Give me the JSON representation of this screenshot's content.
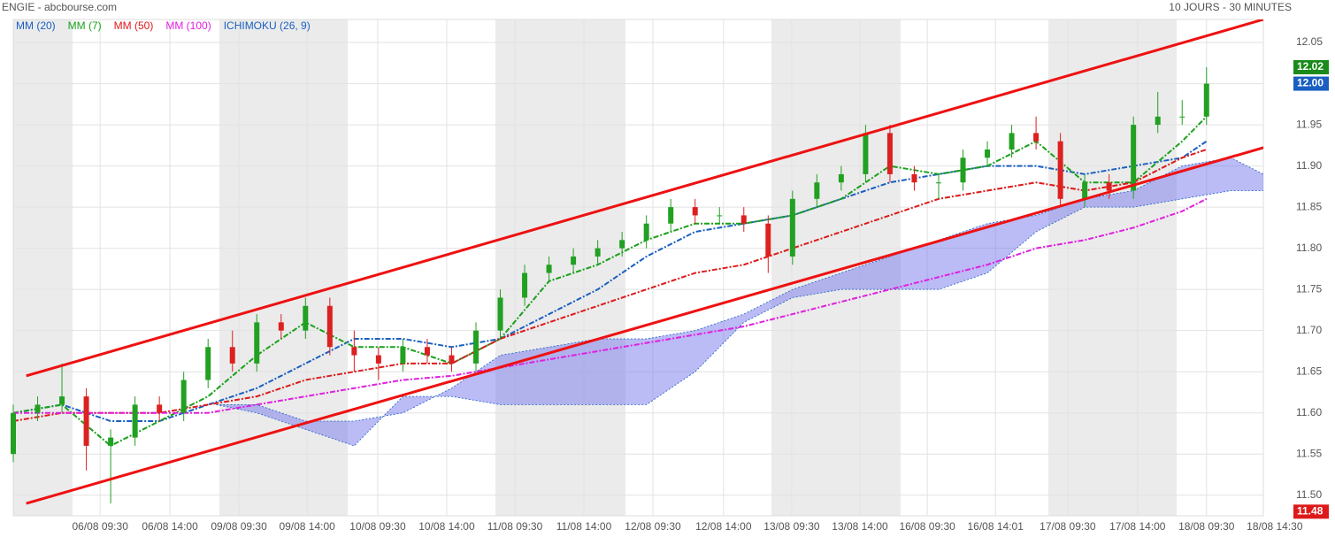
{
  "chart_data": {
    "type": "candlestick",
    "title": "ENGIE - abcbourse.com",
    "subtitle": "10 JOURS - 30 MINUTES",
    "xlim": [
      0,
      154
    ],
    "ylim": [
      11.475,
      12.078
    ],
    "yticks": [
      {
        "value": 11.5,
        "label": "11.50"
      },
      11.55,
      {
        "value": 11.6,
        "label": "11.60"
      },
      11.65,
      {
        "value": 11.7,
        "label": "11.70"
      },
      11.75,
      {
        "value": 11.8,
        "label": "11.80"
      },
      11.85,
      {
        "value": 11.9,
        "label": "11.90"
      },
      11.95,
      {
        "value": 12.0,
        "label": "12.00"
      },
      12.05
    ],
    "xticks": [
      {
        "value": 10.7,
        "label": "06/08 09:30"
      },
      {
        "value": 19.3,
        "label": "06/08 14:00"
      },
      {
        "value": 27.8,
        "label": "09/08 09:30"
      },
      {
        "value": 36.2,
        "label": "09/08 14:00"
      },
      {
        "value": 44.9,
        "label": "10/08 09:30"
      },
      {
        "value": 53.4,
        "label": "10/08 14:00"
      },
      {
        "value": 61.8,
        "label": "11/08 09:30"
      },
      {
        "value": 70.3,
        "label": "11/08 14:00"
      },
      {
        "value": 78.8,
        "label": "12/08 09:30"
      },
      {
        "value": 87.5,
        "label": "12/08 14:00"
      },
      {
        "value": 95.9,
        "label": "13/08 09:30"
      },
      {
        "value": 104.3,
        "label": "13/08 14:00"
      },
      {
        "value": 112.6,
        "label": "16/08 09:30"
      },
      {
        "value": 121,
        "label": "16/08 14:01"
      },
      {
        "value": 129.9,
        "label": "17/08 09:30"
      },
      {
        "value": 138.5,
        "label": "17/08 14:00"
      },
      {
        "value": 147,
        "label": "18/08 09:30"
      },
      {
        "value": 155.4,
        "label": "18/08 14:30"
      }
    ],
    "grid": true,
    "up_color": "#22a022",
    "down_color": "#dd2020",
    "candles": {
      "x": [
        0,
        3,
        6,
        9,
        12,
        15,
        18,
        21,
        24,
        27,
        30,
        33,
        36,
        39,
        42,
        45,
        48,
        51,
        54,
        57,
        60,
        63,
        66,
        69,
        72,
        75,
        78,
        81,
        84,
        87,
        90,
        93,
        96,
        99,
        102,
        105,
        108,
        111,
        114,
        117,
        120,
        123,
        126,
        129,
        132,
        135,
        138,
        141,
        144,
        147
      ],
      "open": [
        11.55,
        11.6,
        11.61,
        11.62,
        11.56,
        11.57,
        11.61,
        11.6,
        11.64,
        11.68,
        11.66,
        11.71,
        11.7,
        11.73,
        11.68,
        11.67,
        11.66,
        11.68,
        11.67,
        11.66,
        11.7,
        11.74,
        11.77,
        11.78,
        11.79,
        11.8,
        11.81,
        11.83,
        11.85,
        11.84,
        11.84,
        11.83,
        11.79,
        11.86,
        11.88,
        11.89,
        11.94,
        11.89,
        11.88,
        11.88,
        11.91,
        11.92,
        11.94,
        11.93,
        11.86,
        11.88,
        11.87,
        11.95,
        11.96,
        11.96
      ],
      "high": [
        11.61,
        11.62,
        11.66,
        11.63,
        11.58,
        11.62,
        11.62,
        11.65,
        11.69,
        11.7,
        11.72,
        11.72,
        11.74,
        11.74,
        11.7,
        11.68,
        11.69,
        11.69,
        11.68,
        11.71,
        11.75,
        11.78,
        11.79,
        11.8,
        11.81,
        11.82,
        11.84,
        11.86,
        11.86,
        11.85,
        11.85,
        11.84,
        11.87,
        11.89,
        11.9,
        11.95,
        11.95,
        11.9,
        11.89,
        11.92,
        11.93,
        11.95,
        11.96,
        11.94,
        11.89,
        11.89,
        11.96,
        11.99,
        11.98,
        12.02
      ],
      "low": [
        11.54,
        11.59,
        11.6,
        11.53,
        11.49,
        11.56,
        11.59,
        11.59,
        11.63,
        11.65,
        11.65,
        11.69,
        11.69,
        11.67,
        11.65,
        11.64,
        11.65,
        11.66,
        11.65,
        11.65,
        11.69,
        11.73,
        11.76,
        11.77,
        11.78,
        11.79,
        11.8,
        11.82,
        11.83,
        11.83,
        11.82,
        11.77,
        11.78,
        11.85,
        11.87,
        11.88,
        11.88,
        11.87,
        11.86,
        11.87,
        11.9,
        11.91,
        11.92,
        11.85,
        11.85,
        11.86,
        11.86,
        11.94,
        11.95,
        11.95
      ],
      "close": [
        11.6,
        11.61,
        11.62,
        11.56,
        11.57,
        11.61,
        11.6,
        11.64,
        11.68,
        11.66,
        11.71,
        11.7,
        11.73,
        11.68,
        11.67,
        11.66,
        11.68,
        11.67,
        11.66,
        11.7,
        11.74,
        11.77,
        11.78,
        11.79,
        11.8,
        11.81,
        11.83,
        11.85,
        11.84,
        11.84,
        11.83,
        11.79,
        11.86,
        11.88,
        11.89,
        11.94,
        11.89,
        11.88,
        11.88,
        11.91,
        11.92,
        11.94,
        11.93,
        11.86,
        11.88,
        11.87,
        11.95,
        11.96,
        11.96,
        12.0
      ]
    },
    "line_x": [
      0,
      6,
      12,
      18,
      24,
      30,
      36,
      42,
      48,
      54,
      60,
      66,
      72,
      78,
      84,
      90,
      96,
      102,
      108,
      114,
      120,
      126,
      132,
      138,
      144,
      147
    ],
    "series": [
      {
        "name": "MM (20)",
        "color": "#1a5fc0",
        "values": [
          11.6,
          11.61,
          11.59,
          11.59,
          11.61,
          11.63,
          11.66,
          11.69,
          11.69,
          11.68,
          11.69,
          11.72,
          11.75,
          11.79,
          11.82,
          11.83,
          11.84,
          11.86,
          11.88,
          11.89,
          11.9,
          11.9,
          11.89,
          11.9,
          11.91,
          11.93
        ]
      },
      {
        "name": "MM (7)",
        "color": "#1aa01a",
        "values": [
          11.6,
          11.61,
          11.56,
          11.59,
          11.62,
          11.67,
          11.71,
          11.68,
          11.68,
          11.66,
          11.69,
          11.76,
          11.78,
          11.81,
          11.83,
          11.83,
          11.84,
          11.86,
          11.9,
          11.89,
          11.9,
          11.93,
          11.88,
          11.88,
          11.93,
          11.96
        ]
      },
      {
        "name": "MM (50)",
        "color": "#dd1a1a",
        "values": [
          11.59,
          11.6,
          11.6,
          11.6,
          11.61,
          11.62,
          11.64,
          11.65,
          11.66,
          11.66,
          11.69,
          11.71,
          11.73,
          11.75,
          11.77,
          11.78,
          11.8,
          11.82,
          11.84,
          11.86,
          11.87,
          11.88,
          11.87,
          11.88,
          11.91,
          11.92
        ]
      },
      {
        "name": "MM (100)",
        "color": "#e020e0",
        "values": [
          11.6,
          11.6,
          11.6,
          11.6,
          11.6,
          11.61,
          11.62,
          11.63,
          11.64,
          11.645,
          11.655,
          11.665,
          11.675,
          11.685,
          11.695,
          11.705,
          11.72,
          11.735,
          11.75,
          11.765,
          11.78,
          11.8,
          11.81,
          11.825,
          11.845,
          11.86
        ]
      }
    ],
    "ichimoku": {
      "name": "ICHIMOKU (26, 9)",
      "color": "#1a5fc0",
      "fill": "#7777ee",
      "x": [
        25,
        30,
        36,
        42,
        48,
        54,
        60,
        66,
        72,
        78,
        84,
        90,
        96,
        102,
        108,
        114,
        120,
        126,
        132,
        138,
        144,
        150,
        154
      ],
      "span_a": [
        11.61,
        11.61,
        11.59,
        11.59,
        11.6,
        11.63,
        11.67,
        11.68,
        11.69,
        11.69,
        11.7,
        11.72,
        11.75,
        11.77,
        11.79,
        11.81,
        11.83,
        11.84,
        11.86,
        11.87,
        11.9,
        11.91,
        11.89
      ],
      "span_b": [
        11.61,
        11.6,
        11.58,
        11.56,
        11.62,
        11.62,
        11.61,
        11.61,
        11.61,
        11.61,
        11.65,
        11.71,
        11.74,
        11.75,
        11.75,
        11.75,
        11.77,
        11.82,
        11.85,
        11.85,
        11.86,
        11.87,
        11.87
      ]
    },
    "trendlines": [
      {
        "color": "#ee1111",
        "x": [
          1.6,
          154
        ],
        "y": [
          11.645,
          12.078
        ]
      },
      {
        "color": "#ee1111",
        "x": [
          1.6,
          155
        ],
        "y": [
          11.49,
          11.925
        ]
      }
    ],
    "price_tags": [
      {
        "value": 12.02,
        "label": "12.02",
        "color": "#1a8a1a"
      },
      {
        "value": 12.0,
        "label": "12.00",
        "color": "#1a5fc0"
      },
      {
        "value": 11.48,
        "label": "11.48",
        "color": "#dd1a1a"
      }
    ]
  }
}
